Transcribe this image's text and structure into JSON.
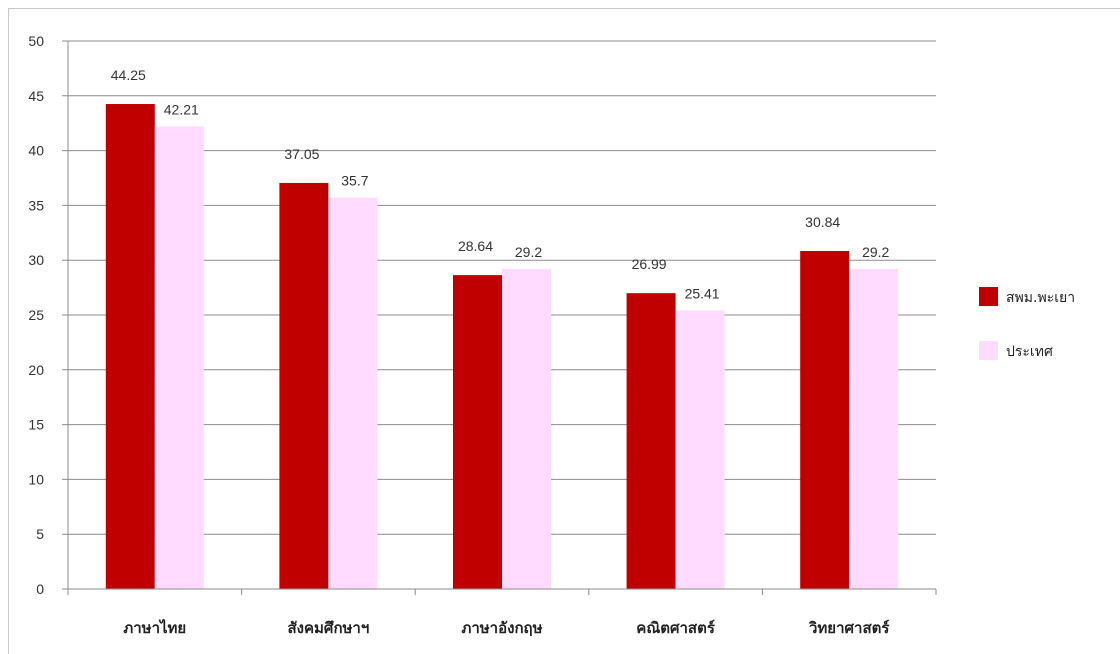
{
  "chart_data": {
    "type": "bar",
    "categories": [
      "ภาษาไทย",
      "สังคมศึกษาฯ",
      "ภาษาอังกฤษ",
      "คณิตศาสตร์",
      "วิทยาศาสตร์"
    ],
    "series": [
      {
        "name": "สพม.พะเยา",
        "values": [
          44.25,
          37.05,
          28.64,
          26.99,
          30.84
        ],
        "color": "#c00000",
        "labels": [
          "44.25",
          "37.05",
          "28.64",
          "26.99",
          "30.84"
        ]
      },
      {
        "name": "ประเทศ",
        "values": [
          42.21,
          35.7,
          29.2,
          25.41,
          29.2
        ],
        "color": "#ffdcff",
        "labels": [
          "42.21",
          "35.7",
          "29.2",
          "25.41",
          "29.2"
        ]
      }
    ],
    "ylim": [
      0,
      50
    ],
    "yticks": [
      0,
      5,
      10,
      15,
      20,
      25,
      30,
      35,
      40,
      45,
      50
    ],
    "grid": true,
    "legend_position": "right",
    "title": "",
    "xlabel": "",
    "ylabel": ""
  }
}
